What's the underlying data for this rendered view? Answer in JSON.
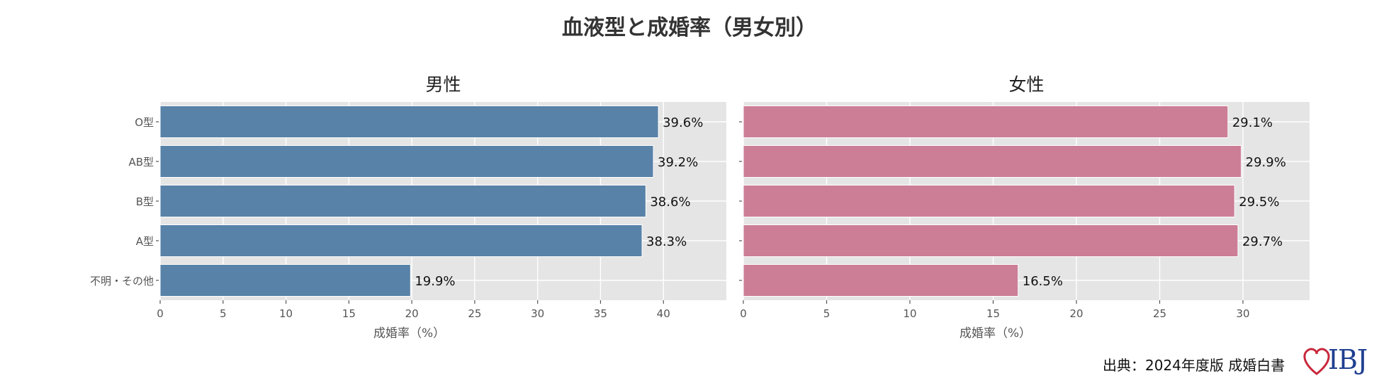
{
  "title": "血液型と成婚率（男女別）",
  "source": "出典：2024年度版 成婚白書",
  "logo_text": "IBJ",
  "colors": {
    "male": "#5882a8",
    "female": "#cc7e97",
    "panel_bg": "#e5e5e5",
    "grid": "#ffffff",
    "logo": "#1f3f8f",
    "heart": "#c8283c"
  },
  "chart_data": [
    {
      "type": "bar",
      "orientation": "horizontal",
      "title": "男性",
      "categories": [
        "O型",
        "AB型",
        "B型",
        "A型",
        "不明・その他"
      ],
      "values": [
        39.6,
        39.2,
        38.6,
        38.3,
        19.9
      ],
      "value_labels": [
        "39.6%",
        "39.2%",
        "38.6%",
        "38.3%",
        "19.9%"
      ],
      "xlabel": "成婚率（%）",
      "xlim": [
        0,
        45
      ],
      "xticks": [
        0,
        5,
        10,
        15,
        20,
        25,
        30,
        35,
        40
      ],
      "grid": true
    },
    {
      "type": "bar",
      "orientation": "horizontal",
      "title": "女性",
      "categories": [
        "O型",
        "AB型",
        "B型",
        "A型",
        "不明・その他"
      ],
      "values": [
        29.1,
        29.9,
        29.5,
        29.7,
        16.5
      ],
      "value_labels": [
        "29.1%",
        "29.9%",
        "29.5%",
        "29.7%",
        "16.5%"
      ],
      "xlabel": "成婚率（%）",
      "xlim": [
        0,
        34
      ],
      "xticks": [
        0,
        5,
        10,
        15,
        20,
        25,
        30
      ],
      "grid": true
    }
  ]
}
